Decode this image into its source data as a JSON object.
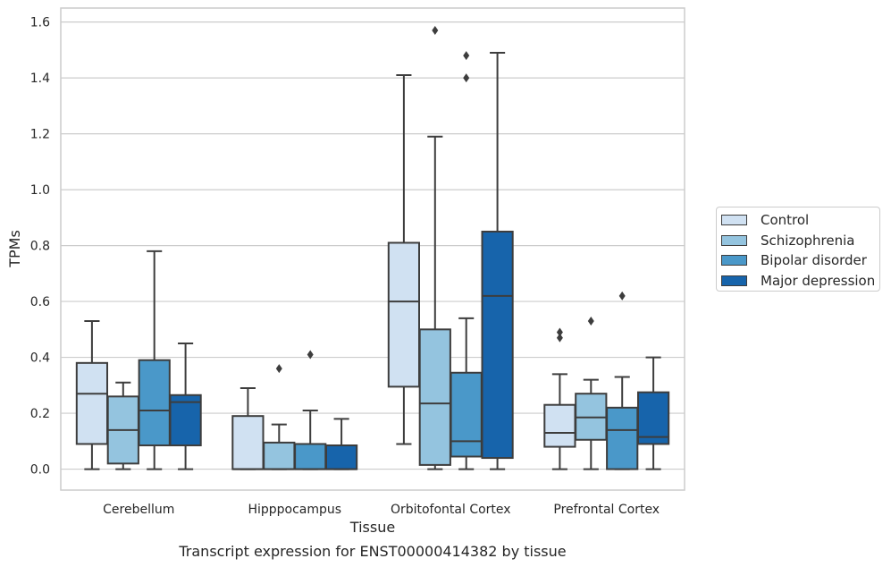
{
  "chart_data": {
    "type": "box",
    "title": "",
    "caption": "Transcript expression for ENST00000414382 by tissue",
    "xlabel": "Tissue",
    "ylabel": "TPMs",
    "ylim": [
      -0.075,
      1.65
    ],
    "yticks": [
      "0.0",
      "0.2",
      "0.4",
      "0.6",
      "0.8",
      "1.0",
      "1.2",
      "1.4",
      "1.6"
    ],
    "ytick_values": [
      0,
      0.2,
      0.4,
      0.6,
      0.8,
      1.0,
      1.2,
      1.4,
      1.6
    ],
    "grid": true,
    "legend_placement": "right",
    "categories": [
      "Cerebellum",
      "Hipppocampus",
      "Orbitofontal Cortex",
      "Prefrontal Cortex"
    ],
    "series": [
      {
        "name": "Control",
        "color": "#d0e1f2",
        "boxes": [
          {
            "whislo": 0.0,
            "q1": 0.09,
            "med": 0.27,
            "q3": 0.38,
            "whishi": 0.53,
            "fliers": []
          },
          {
            "whislo": 0.0,
            "q1": 0.0,
            "med": 0.0,
            "q3": 0.19,
            "whishi": 0.29,
            "fliers": []
          },
          {
            "whislo": 0.09,
            "q1": 0.295,
            "med": 0.6,
            "q3": 0.81,
            "whishi": 1.41,
            "fliers": []
          },
          {
            "whislo": 0.0,
            "q1": 0.08,
            "med": 0.13,
            "q3": 0.23,
            "whishi": 0.34,
            "fliers": [
              0.47,
              0.49
            ]
          }
        ]
      },
      {
        "name": "Schizophrenia",
        "color": "#94c4df",
        "boxes": [
          {
            "whislo": 0.0,
            "q1": 0.02,
            "med": 0.14,
            "q3": 0.26,
            "whishi": 0.31,
            "fliers": []
          },
          {
            "whislo": 0.0,
            "q1": 0.0,
            "med": 0.0,
            "q3": 0.095,
            "whishi": 0.16,
            "fliers": [
              0.36
            ]
          },
          {
            "whislo": 0.0,
            "q1": 0.015,
            "med": 0.235,
            "q3": 0.5,
            "whishi": 1.19,
            "fliers": [
              1.57
            ]
          },
          {
            "whislo": 0.0,
            "q1": 0.105,
            "med": 0.185,
            "q3": 0.27,
            "whishi": 0.32,
            "fliers": [
              0.53
            ]
          }
        ]
      },
      {
        "name": "Bipolar disorder",
        "color": "#4a98c9",
        "boxes": [
          {
            "whislo": 0.0,
            "q1": 0.085,
            "med": 0.21,
            "q3": 0.39,
            "whishi": 0.78,
            "fliers": []
          },
          {
            "whislo": 0.0,
            "q1": 0.0,
            "med": 0.0,
            "q3": 0.09,
            "whishi": 0.21,
            "fliers": [
              0.41
            ]
          },
          {
            "whislo": 0.0,
            "q1": 0.045,
            "med": 0.1,
            "q3": 0.345,
            "whishi": 0.54,
            "fliers": [
              1.4,
              1.48
            ]
          },
          {
            "whislo": 0.0,
            "q1": 0.0,
            "med": 0.14,
            "q3": 0.22,
            "whishi": 0.33,
            "fliers": [
              0.62
            ]
          }
        ]
      },
      {
        "name": "Major depression",
        "color": "#1764ab",
        "boxes": [
          {
            "whislo": 0.0,
            "q1": 0.085,
            "med": 0.24,
            "q3": 0.265,
            "whishi": 0.45,
            "fliers": []
          },
          {
            "whislo": 0.0,
            "q1": 0.0,
            "med": 0.0,
            "q3": 0.085,
            "whishi": 0.18,
            "fliers": []
          },
          {
            "whislo": 0.0,
            "q1": 0.04,
            "med": 0.62,
            "q3": 0.85,
            "whishi": 1.49,
            "fliers": []
          },
          {
            "whislo": 0.0,
            "q1": 0.09,
            "med": 0.115,
            "q3": 0.275,
            "whishi": 0.4,
            "fliers": []
          }
        ]
      }
    ]
  }
}
